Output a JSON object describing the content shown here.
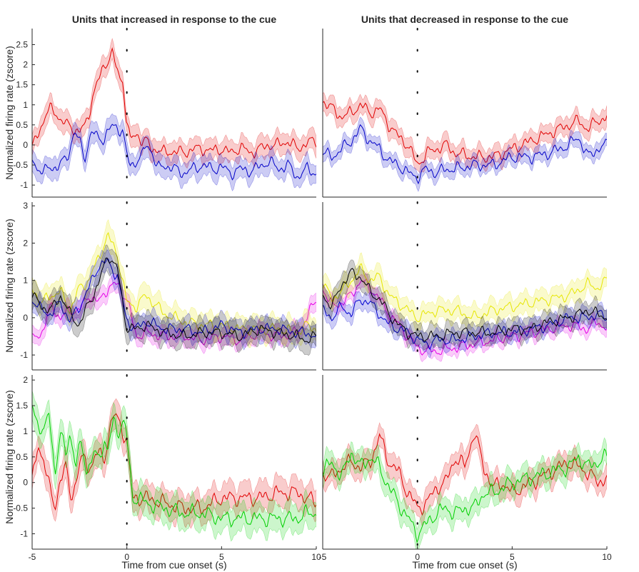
{
  "chart_data": [
    {
      "type": "line",
      "title": "Units that increased in response to the cue",
      "xlabel": "",
      "ylabel": "Normalized firing rate (zscore)",
      "xlim": [
        -5,
        10
      ],
      "ylim": [
        -1.3,
        2.9
      ],
      "yticks": [
        -1,
        -0.5,
        0,
        0.5,
        1,
        1.5,
        2,
        2.5
      ],
      "xticks": [],
      "vline": 0,
      "grid": false,
      "series": [
        {
          "color": "#e00000",
          "band": 0.28,
          "x": [
            -5,
            -4.7,
            -4.4,
            -4.2,
            -4,
            -3.7,
            -3.5,
            -3.2,
            -3,
            -2.8,
            -2.5,
            -2.2,
            -2,
            -1.8,
            -1.5,
            -1.2,
            -1,
            -0.8,
            -0.6,
            -0.4,
            -0.2,
            0,
            0.2,
            0.5,
            0.8,
            1,
            1.3,
            1.6,
            2,
            2.5,
            3,
            3.5,
            4,
            4.5,
            5,
            5.5,
            6,
            6.5,
            7,
            7.5,
            8,
            8.5,
            9,
            9.5,
            10
          ],
          "y": [
            -0.1,
            0.3,
            0.6,
            0.8,
            0.9,
            0.8,
            0.6,
            0.5,
            0.5,
            0.4,
            0.3,
            0.5,
            0.8,
            1.2,
            1.6,
            2.0,
            2.1,
            2.3,
            2.0,
            1.7,
            1.6,
            0.5,
            0.1,
            0.3,
            0.1,
            0.1,
            -0.1,
            -0.1,
            -0.2,
            -0.15,
            -0.2,
            -0.1,
            -0.1,
            -0.15,
            -0.1,
            -0.2,
            -0.05,
            -0.2,
            -0.1,
            0.0,
            0.0,
            0.1,
            -0.1,
            0.05,
            0.1
          ]
        },
        {
          "color": "#0000c8",
          "band": 0.28,
          "x": [
            -5,
            -4.7,
            -4.4,
            -4.2,
            -4,
            -3.7,
            -3.5,
            -3.2,
            -3,
            -2.8,
            -2.5,
            -2.2,
            -2,
            -1.8,
            -1.5,
            -1.2,
            -1,
            -0.8,
            -0.6,
            -0.4,
            -0.2,
            0,
            0.2,
            0.5,
            0.8,
            1,
            1.3,
            1.6,
            2,
            2.5,
            3,
            3.5,
            4,
            4.5,
            5,
            5.5,
            6,
            6.5,
            7,
            7.5,
            8,
            8.5,
            9,
            9.5,
            10
          ],
          "y": [
            -0.3,
            -0.6,
            -0.7,
            -0.6,
            -0.5,
            -0.6,
            -0.5,
            -0.3,
            -0.1,
            0.3,
            0.1,
            -0.3,
            0.1,
            0.3,
            0.2,
            0.15,
            0.3,
            0.45,
            0.5,
            0.4,
            0.3,
            -0.3,
            -0.5,
            -0.4,
            -0.3,
            0.0,
            -0.1,
            -0.6,
            -0.5,
            -0.6,
            -0.7,
            -0.6,
            -0.5,
            -0.6,
            -0.55,
            -0.7,
            -0.6,
            -0.65,
            -0.55,
            -0.4,
            -0.6,
            -0.5,
            -0.8,
            -0.6,
            -0.7
          ]
        }
      ]
    },
    {
      "type": "line",
      "title": "Units that decreased in response to the cue",
      "xlabel": "",
      "ylabel": "",
      "xlim": [
        -5,
        10
      ],
      "ylim": [
        -1.3,
        2.9
      ],
      "yticks": [],
      "xticks": [],
      "vline": 0,
      "grid": false,
      "series": [
        {
          "color": "#e00000",
          "band": 0.25,
          "x": [
            -5,
            -4.5,
            -4,
            -3.5,
            -3,
            -2.5,
            -2,
            -1.5,
            -1,
            -0.5,
            0,
            0.5,
            1,
            1.5,
            2,
            3,
            4,
            5,
            6,
            7,
            8,
            8.5,
            9,
            9.5,
            10
          ],
          "y": [
            1.1,
            0.9,
            0.7,
            0.8,
            1.0,
            0.8,
            0.9,
            0.5,
            0.2,
            0.0,
            -0.5,
            -0.2,
            -0.1,
            0.0,
            -0.2,
            -0.3,
            -0.3,
            -0.1,
            0.1,
            0.3,
            0.5,
            0.6,
            0.4,
            0.6,
            0.7
          ]
        },
        {
          "color": "#0000c8",
          "band": 0.2,
          "x": [
            -5,
            -4.5,
            -4,
            -3.5,
            -3,
            -2.5,
            -2,
            -1.5,
            -1,
            -0.5,
            0,
            0.5,
            1,
            1.5,
            2,
            3,
            4,
            5,
            6,
            7,
            8,
            8.5,
            9,
            9.5,
            10
          ],
          "y": [
            -0.2,
            -0.3,
            -0.1,
            0.1,
            0.4,
            0.1,
            -0.1,
            -0.4,
            -0.5,
            -0.7,
            -0.8,
            -0.6,
            -0.7,
            -0.6,
            -0.6,
            -0.5,
            -0.5,
            -0.3,
            -0.3,
            -0.2,
            0.0,
            0.2,
            -0.3,
            -0.1,
            0.0
          ]
        }
      ]
    },
    {
      "type": "line",
      "title": "",
      "xlabel": "",
      "ylabel": "Normalized firing rate (zscore)",
      "xlim": [
        -5,
        10
      ],
      "ylim": [
        -1.4,
        3.1
      ],
      "yticks": [
        -1,
        0,
        1,
        2,
        3
      ],
      "xticks": [],
      "vline": 0,
      "grid": false,
      "series": [
        {
          "color": "#e600e6",
          "band": 0.25,
          "x": [
            -5,
            -4.5,
            -4,
            -3.5,
            -3,
            -2.5,
            -2,
            -1.5,
            -1,
            -0.5,
            0,
            0.5,
            1,
            2,
            3,
            4,
            5,
            6,
            7,
            8,
            9,
            9.5,
            10
          ],
          "y": [
            -0.6,
            -0.4,
            0.3,
            0.0,
            0.2,
            0.2,
            0.6,
            0.4,
            0.8,
            0.9,
            0.5,
            -0.5,
            -0.4,
            -0.5,
            -0.5,
            -0.6,
            -0.5,
            -0.6,
            -0.4,
            -0.5,
            -0.4,
            0.0,
            0.5
          ]
        },
        {
          "color": "#e6e600",
          "band": 0.35,
          "x": [
            -5,
            -4.5,
            -4,
            -3.5,
            -3,
            -2.5,
            -2,
            -1.5,
            -1,
            -0.5,
            0,
            0.5,
            1,
            2,
            3,
            4,
            5,
            6,
            7,
            8,
            9,
            9.5,
            10
          ],
          "y": [
            0.8,
            0.4,
            0.6,
            0.7,
            0.2,
            0.8,
            1.0,
            1.6,
            2.2,
            1.7,
            0.4,
            0.3,
            0.6,
            0.1,
            -0.1,
            -0.2,
            -0.2,
            -0.3,
            -0.3,
            -0.3,
            -0.4,
            -0.2,
            -0.3
          ]
        },
        {
          "color": "#0000d0",
          "band": 0.3,
          "x": [
            -5,
            -4.5,
            -4,
            -3.5,
            -3,
            -2.5,
            -2,
            -1.5,
            -1,
            -0.5,
            0,
            0.5,
            1,
            2,
            3,
            4,
            5,
            6,
            7,
            8,
            9,
            9.5,
            10
          ],
          "y": [
            0.5,
            0.2,
            0.1,
            0.4,
            -0.1,
            0.3,
            0.8,
            1.4,
            1.5,
            1.1,
            -0.1,
            -0.3,
            -0.1,
            -0.3,
            -0.3,
            -0.4,
            -0.2,
            -0.4,
            -0.3,
            -0.3,
            -0.4,
            -0.4,
            -0.5
          ]
        },
        {
          "color": "#000000",
          "band": 0.35,
          "x": [
            -5,
            -4.5,
            -4,
            -3.5,
            -3,
            -2.5,
            -2,
            -1.5,
            -1,
            -0.5,
            0,
            0.5,
            1,
            2,
            3,
            4,
            5,
            6,
            7,
            8,
            9,
            9.5,
            10
          ],
          "y": [
            0.6,
            0.3,
            0.2,
            0.6,
            0.1,
            -0.2,
            0.4,
            0.9,
            1.7,
            1.3,
            -0.3,
            -0.3,
            -0.2,
            -0.4,
            -0.5,
            -0.4,
            -0.4,
            -0.5,
            -0.3,
            -0.4,
            -0.5,
            -0.6,
            -0.5
          ]
        }
      ]
    },
    {
      "type": "line",
      "title": "",
      "xlabel": "",
      "ylabel": "",
      "xlim": [
        -5,
        10
      ],
      "ylim": [
        -1.4,
        3.1
      ],
      "yticks": [],
      "xticks": [],
      "vline": 0,
      "grid": false,
      "series": [
        {
          "color": "#e600e6",
          "band": 0.2,
          "x": [
            -5,
            -4.5,
            -4,
            -3.5,
            -3,
            -2.5,
            -2,
            -1.5,
            -1,
            -0.5,
            0,
            0.5,
            1,
            2,
            3,
            4,
            5,
            6,
            7,
            8,
            9,
            9.5,
            10
          ],
          "y": [
            0.8,
            0.3,
            0.4,
            0.6,
            1.0,
            0.8,
            0.5,
            0.1,
            -0.2,
            -0.5,
            -0.8,
            -0.9,
            -0.9,
            -0.8,
            -0.7,
            -0.6,
            -0.5,
            -0.4,
            -0.3,
            -0.2,
            -0.3,
            -0.1,
            -0.3
          ]
        },
        {
          "color": "#e6e600",
          "band": 0.3,
          "x": [
            -5,
            -4.5,
            -4,
            -3.5,
            -3,
            -2.5,
            -2,
            -1.5,
            -1,
            -0.5,
            0,
            0.5,
            1,
            2,
            3,
            4,
            5,
            6,
            7,
            8,
            9,
            9.5,
            10
          ],
          "y": [
            0.9,
            0.5,
            0.7,
            1.0,
            1.3,
            1.0,
            1.1,
            0.6,
            0.4,
            0.2,
            0.0,
            0.1,
            0.2,
            0.2,
            0.0,
            0.2,
            0.3,
            0.4,
            0.5,
            0.6,
            0.9,
            0.8,
            1.0
          ]
        },
        {
          "color": "#0000d0",
          "band": 0.25,
          "x": [
            -5,
            -4.5,
            -4,
            -3.5,
            -3,
            -2.5,
            -2,
            -1.5,
            -1,
            -0.5,
            0,
            0.5,
            1,
            2,
            3,
            4,
            5,
            6,
            7,
            8,
            9,
            9.5,
            10
          ],
          "y": [
            0.2,
            0.0,
            0.3,
            0.1,
            0.5,
            0.4,
            0.1,
            -0.2,
            -0.3,
            -0.4,
            -0.6,
            -0.7,
            -0.6,
            -0.6,
            -0.5,
            -0.4,
            -0.4,
            -0.3,
            -0.2,
            0.0,
            0.0,
            0.1,
            0.0
          ]
        },
        {
          "color": "#000000",
          "band": 0.3,
          "x": [
            -5,
            -4.5,
            -4,
            -3.5,
            -3,
            -2.5,
            -2,
            -1.5,
            -1,
            -0.5,
            0,
            0.5,
            1,
            2,
            3,
            4,
            5,
            6,
            7,
            8,
            9,
            9.5,
            10
          ],
          "y": [
            0.6,
            0.3,
            0.9,
            1.2,
            1.1,
            0.7,
            0.5,
            0.1,
            -0.2,
            -0.4,
            -0.5,
            -0.5,
            -0.5,
            -0.4,
            -0.4,
            -0.4,
            -0.3,
            -0.3,
            -0.1,
            0.0,
            0.2,
            0.1,
            0.0
          ]
        }
      ]
    },
    {
      "type": "line",
      "title": "",
      "xlabel": "Time from cue onset (s)",
      "ylabel": "Normalized firing rate (zscore)",
      "xlim": [
        -5,
        10
      ],
      "ylim": [
        -1.3,
        2.1
      ],
      "yticks": [
        -1,
        -0.5,
        0,
        0.5,
        1,
        1.5,
        2
      ],
      "xticks": [
        -5,
        0,
        5,
        10
      ],
      "vline": 0,
      "grid": false,
      "series": [
        {
          "color": "#e00000",
          "band": 0.3,
          "x": [
            -5,
            -4.7,
            -4.4,
            -4.1,
            -3.8,
            -3.5,
            -3.2,
            -3,
            -2.7,
            -2.4,
            -2.1,
            -1.8,
            -1.5,
            -1.2,
            -1,
            -0.7,
            -0.4,
            -0.2,
            0,
            0.3,
            0.6,
            1,
            2,
            3,
            4,
            5,
            6,
            7,
            8,
            9,
            9.5,
            10
          ],
          "y": [
            0.0,
            0.7,
            0.5,
            -0.1,
            -0.5,
            0.1,
            0.3,
            -0.3,
            0.0,
            0.5,
            0.3,
            0.4,
            0.6,
            0.4,
            0.9,
            1.3,
            1.2,
            1.0,
            0.8,
            -0.3,
            -0.3,
            -0.3,
            -0.4,
            -0.5,
            -0.5,
            -0.3,
            -0.3,
            -0.3,
            -0.2,
            -0.2,
            -0.3,
            -0.4
          ]
        },
        {
          "color": "#00d000",
          "band": 0.3,
          "x": [
            -5,
            -4.7,
            -4.4,
            -4.1,
            -3.8,
            -3.5,
            -3.2,
            -3,
            -2.7,
            -2.4,
            -2.1,
            -1.8,
            -1.5,
            -1.2,
            -1,
            -0.7,
            -0.4,
            -0.2,
            0,
            0.3,
            0.6,
            1,
            2,
            3,
            4,
            5,
            6,
            7,
            8,
            9,
            9.5,
            10
          ],
          "y": [
            1.5,
            1.2,
            0.9,
            1.4,
            0.2,
            0.9,
            0.6,
            1.0,
            0.3,
            0.8,
            0.2,
            0.5,
            0.5,
            0.8,
            0.6,
            1.2,
            1.0,
            1.2,
            0.9,
            -0.3,
            -0.3,
            -0.4,
            -0.5,
            -0.6,
            -0.6,
            -0.7,
            -0.7,
            -0.7,
            -0.7,
            -0.7,
            -0.6,
            -0.6
          ]
        }
      ]
    },
    {
      "type": "line",
      "title": "",
      "xlabel": "Time from cue onset (s)",
      "ylabel": "",
      "xlim": [
        -5,
        10
      ],
      "ylim": [
        -1.3,
        2.1
      ],
      "yticks": [],
      "xticks": [
        -5,
        0,
        5,
        10
      ],
      "vline": 0,
      "grid": false,
      "series": [
        {
          "color": "#e00000",
          "band": 0.25,
          "x": [
            -5,
            -4.5,
            -4,
            -3.5,
            -3,
            -2.5,
            -2,
            -1.5,
            -1,
            -0.5,
            0,
            0.5,
            1,
            1.5,
            2,
            2.5,
            3,
            3.5,
            4,
            4.5,
            5,
            6,
            7,
            8,
            8.5,
            9,
            9.5,
            10
          ],
          "y": [
            0.2,
            0.1,
            0.3,
            0.4,
            0.3,
            0.4,
            0.9,
            0.4,
            0.2,
            -0.2,
            -0.5,
            -0.4,
            -0.1,
            0.0,
            0.5,
            0.3,
            1.0,
            0.3,
            -0.1,
            0.0,
            -0.2,
            0.0,
            0.2,
            0.4,
            0.3,
            0.2,
            0.0,
            0.1
          ]
        },
        {
          "color": "#00d000",
          "band": 0.25,
          "x": [
            -5,
            -4.5,
            -4,
            -3.5,
            -3,
            -2.5,
            -2,
            -1.5,
            -1,
            -0.5,
            0,
            0.5,
            1,
            1.5,
            2,
            2.5,
            3,
            3.5,
            4,
            4.5,
            5,
            6,
            7,
            8,
            8.5,
            9,
            9.5,
            10
          ],
          "y": [
            0.2,
            0.4,
            0.1,
            0.6,
            0.3,
            0.5,
            0.3,
            -0.1,
            -0.4,
            -0.7,
            -1.0,
            -0.8,
            -0.6,
            -0.5,
            -0.6,
            -0.5,
            -0.5,
            -0.2,
            -0.2,
            -0.1,
            0.0,
            0.1,
            0.2,
            0.3,
            0.5,
            0.3,
            0.4,
            0.5
          ]
        }
      ]
    }
  ]
}
